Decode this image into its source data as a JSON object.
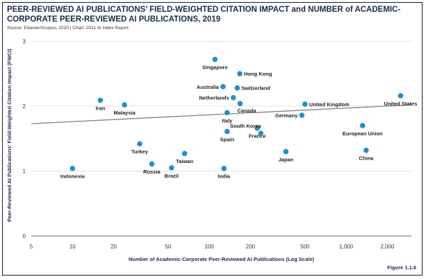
{
  "title": "PEER-REVIEWED AI PUBLICATIONS’ FIELD-WEIGHTED CITATION IMPACT and NUMBER of ACADEMIC-CORPORATE PEER-REVIEWED AI PUBLICATIONS, 2019",
  "source": "Source: Elsevier/Scopus, 2020 | Chart: 2021 AI Index Report",
  "figure_label": "Figure 1.1.6",
  "colors": {
    "point": "#1f8fce",
    "trend": "#888888",
    "grid": "#dddddd",
    "title": "#1b2a4a"
  },
  "chart_data": {
    "type": "scatter",
    "xlabel": "Number of Academic-Corporate Peer-Reviewed AI Publications (Log Scale)",
    "ylabel": "Peer-Reviewed AI Publications' Field-Weighted Citation Impact (FWCI)",
    "x_scale": "log",
    "xlim": [
      5,
      3000
    ],
    "ylim": [
      0,
      3.1
    ],
    "x_ticks": [
      5,
      10,
      20,
      50,
      100,
      200,
      500,
      1000,
      2000
    ],
    "x_tick_labels": [
      "5",
      "10",
      "20",
      "50",
      "100",
      "200",
      "500",
      "1,000",
      "2,000"
    ],
    "y_ticks": [
      0,
      1,
      2,
      3
    ],
    "y_tick_labels": [
      "0",
      "1",
      "2",
      "3"
    ],
    "grid": "horizontal",
    "trendline": {
      "x": [
        5,
        3000
      ],
      "y": [
        1.73,
        2.02
      ]
    },
    "points": [
      {
        "label": "Indonesia",
        "x": 10,
        "y": 1.04,
        "lpos": "below"
      },
      {
        "label": "Iran",
        "x": 16,
        "y": 2.09,
        "lpos": "below"
      },
      {
        "label": "Malaysia",
        "x": 24,
        "y": 2.02,
        "lpos": "below"
      },
      {
        "label": "Turkey",
        "x": 31,
        "y": 1.42,
        "lpos": "below"
      },
      {
        "label": "Russia",
        "x": 38,
        "y": 1.11,
        "lpos": "below"
      },
      {
        "label": "Brazil",
        "x": 53,
        "y": 1.05,
        "lpos": "below"
      },
      {
        "label": "Taiwan",
        "x": 66,
        "y": 1.27,
        "lpos": "below"
      },
      {
        "label": "Singapore",
        "x": 110,
        "y": 2.72,
        "lpos": "below"
      },
      {
        "label": "India",
        "x": 128,
        "y": 1.04,
        "lpos": "below"
      },
      {
        "label": "Australia",
        "x": 126,
        "y": 2.3,
        "lpos": "left"
      },
      {
        "label": "Netherlands",
        "x": 150,
        "y": 2.13,
        "lpos": "left"
      },
      {
        "label": "Hong Kong",
        "x": 167,
        "y": 2.5,
        "lpos": "right"
      },
      {
        "label": "Switzerland",
        "x": 160,
        "y": 2.28,
        "lpos": "right"
      },
      {
        "label": "Canada",
        "x": 168,
        "y": 2.04,
        "lpos": "belowright"
      },
      {
        "label": "Italy",
        "x": 135,
        "y": 1.9,
        "lpos": "below"
      },
      {
        "label": "Spain",
        "x": 135,
        "y": 1.61,
        "lpos": "below"
      },
      {
        "label": "France",
        "x": 224,
        "y": 1.66,
        "lpos": "below"
      },
      {
        "label": "South Korea",
        "x": 238,
        "y": 1.58,
        "lpos": "aboveright"
      },
      {
        "label": "Japan",
        "x": 363,
        "y": 1.3,
        "lpos": "below"
      },
      {
        "label": "Germany",
        "x": 475,
        "y": 1.86,
        "lpos": "left"
      },
      {
        "label": "United Kingdom",
        "x": 500,
        "y": 2.03,
        "lpos": "right"
      },
      {
        "label": "European Union",
        "x": 1320,
        "y": 1.7,
        "lpos": "below"
      },
      {
        "label": "China",
        "x": 1400,
        "y": 1.32,
        "lpos": "below"
      },
      {
        "label": "United States",
        "x": 2500,
        "y": 2.16,
        "lpos": "below"
      }
    ]
  }
}
